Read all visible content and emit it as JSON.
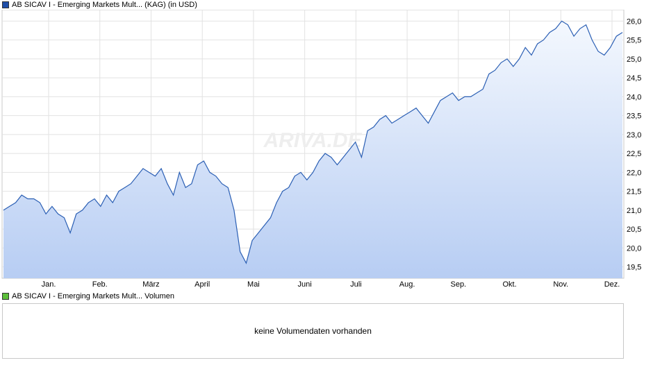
{
  "price_legend": {
    "label": "AB SICAV I - Emerging Markets Mult... (KAG) (in USD)",
    "color": "#1f4ea8"
  },
  "volume_legend": {
    "label": "AB SICAV I - Emerging Markets Mult... Volumen",
    "color": "#5cbf3a"
  },
  "volume_panel": {
    "message": "keine Volumendaten vorhanden"
  },
  "watermark": "ARIVA.DE",
  "chart_data": {
    "type": "area",
    "x_tick_labels": [
      "Jan.",
      "Feb.",
      "März",
      "April",
      "Mai",
      "Juni",
      "Juli",
      "Aug.",
      "Sep.",
      "Okt.",
      "Nov.",
      "Dez."
    ],
    "y_ticks": [
      19.5,
      20.0,
      20.5,
      21.0,
      21.5,
      22.0,
      22.5,
      23.0,
      23.5,
      24.0,
      24.5,
      25.0,
      25.5,
      26.0
    ],
    "ylim": [
      19.2,
      26.3
    ],
    "y_axis_position": "right",
    "grid": true,
    "series": [
      {
        "values": [
          21.0,
          21.1,
          21.2,
          21.4,
          21.3,
          21.3,
          21.2,
          20.9,
          21.1,
          20.9,
          20.8,
          20.4,
          20.9,
          21.0,
          21.2,
          21.3,
          21.1,
          21.4,
          21.2,
          21.5,
          21.6,
          21.7,
          21.9,
          22.1,
          22.0,
          21.9,
          22.1,
          21.7,
          21.4,
          22.0,
          21.6,
          21.7,
          22.2,
          22.3,
          22.0,
          21.9,
          21.7,
          21.6,
          21.0,
          19.9,
          19.6,
          20.2,
          20.4,
          20.6,
          20.8,
          21.2,
          21.5,
          21.6,
          21.9,
          22.0,
          21.8,
          22.0,
          22.3,
          22.5,
          22.4,
          22.2,
          22.4,
          22.6,
          22.8,
          22.4,
          23.1,
          23.2,
          23.4,
          23.5,
          23.3,
          23.4,
          23.5,
          23.6,
          23.7,
          23.5,
          23.3,
          23.6,
          23.9,
          24.0,
          24.1,
          23.9,
          24.0,
          24.0,
          24.1,
          24.2,
          24.6,
          24.7,
          24.9,
          25.0,
          24.8,
          25.0,
          25.3,
          25.1,
          25.4,
          25.5,
          25.7,
          25.8,
          26.0,
          25.9,
          25.6,
          25.8,
          25.9,
          25.5,
          25.2,
          25.1,
          25.3,
          25.6,
          25.7
        ],
        "color": "#2b5fb4"
      }
    ]
  }
}
